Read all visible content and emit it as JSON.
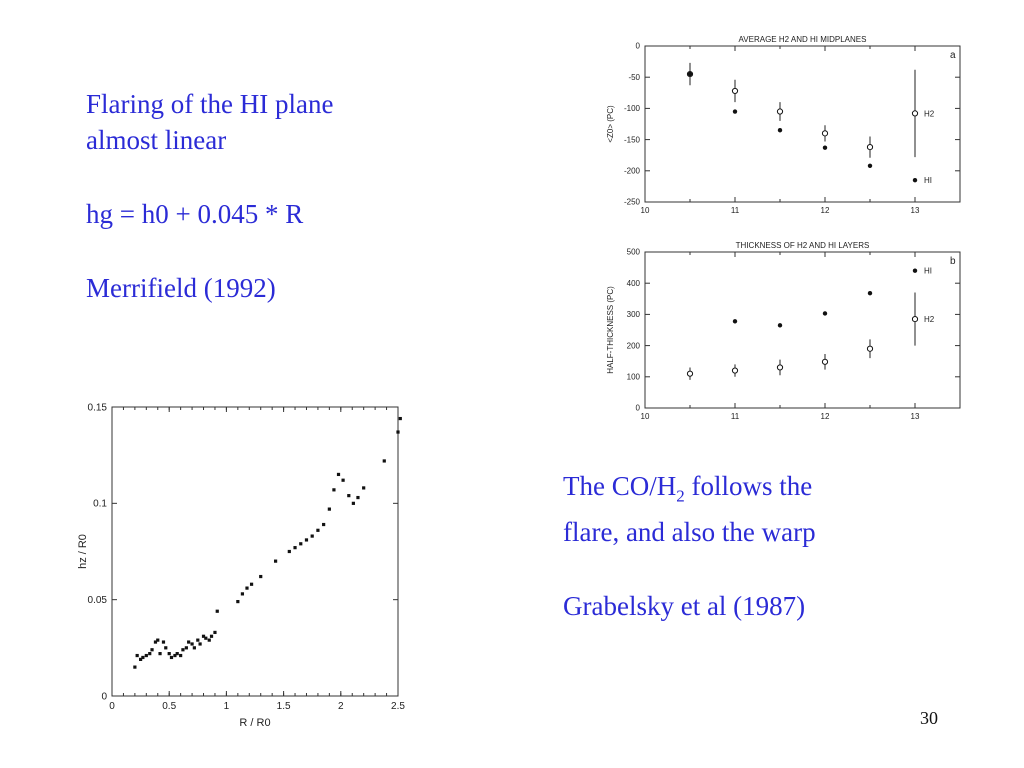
{
  "text_left": {
    "line1": "Flaring of the HI plane",
    "line2": "almost linear",
    "formula": "hg = h0 + 0.045 * R",
    "reference": "Merrifield (1992)"
  },
  "text_right": {
    "line1_prefix": "The CO/H",
    "line1_sub": "2",
    "line1_suffix": " follows the",
    "line2": "flare, and also the warp",
    "reference": "Grabelsky et al (1987)"
  },
  "page_number": "30",
  "chart_data": [
    {
      "type": "scatter",
      "title": "",
      "xlabel": "R / R0",
      "ylabel": "hz / R0",
      "xlim": [
        0,
        2.5
      ],
      "ylim": [
        0,
        0.15
      ],
      "x_ticks": [
        "0",
        "0.5",
        "1",
        "1.5",
        "2",
        "2.5"
      ],
      "y_ticks": [
        "0",
        "0.05",
        "0.1",
        "0.15"
      ],
      "series": [
        {
          "x": [
            0.2,
            0.22,
            0.25,
            0.27,
            0.3,
            0.33,
            0.35,
            0.38,
            0.4,
            0.42,
            0.45,
            0.47,
            0.5,
            0.52,
            0.55,
            0.57,
            0.6,
            0.62,
            0.65,
            0.67,
            0.7,
            0.72,
            0.75,
            0.77,
            0.8,
            0.82,
            0.85,
            0.87,
            0.9,
            0.92,
            1.1,
            1.14,
            1.18,
            1.22,
            1.3,
            1.43,
            1.55,
            1.6,
            1.65,
            1.7,
            1.75,
            1.8,
            1.85,
            1.9,
            1.94,
            1.98,
            2.02,
            2.07,
            2.11,
            2.15,
            2.2,
            2.38,
            2.5,
            2.52
          ],
          "y": [
            0.015,
            0.021,
            0.019,
            0.02,
            0.021,
            0.022,
            0.024,
            0.028,
            0.029,
            0.022,
            0.028,
            0.025,
            0.022,
            0.02,
            0.021,
            0.022,
            0.021,
            0.024,
            0.025,
            0.028,
            0.027,
            0.025,
            0.029,
            0.027,
            0.031,
            0.03,
            0.029,
            0.031,
            0.033,
            0.044,
            0.049,
            0.053,
            0.056,
            0.058,
            0.062,
            0.07,
            0.075,
            0.077,
            0.079,
            0.081,
            0.083,
            0.086,
            0.089,
            0.097,
            0.107,
            0.115,
            0.112,
            0.104,
            0.1,
            0.103,
            0.108,
            0.122,
            0.137,
            0.144
          ]
        }
      ]
    },
    {
      "type": "scatter",
      "title": "AVERAGE H2 AND HI MIDPLANES",
      "panel_label": "a",
      "xlabel": "",
      "ylabel": "<Z0> (PC)",
      "xlim": [
        10,
        13.5
      ],
      "ylim": [
        -250,
        0
      ],
      "x_ticks": [
        "10",
        "11",
        "12",
        "13"
      ],
      "y_ticks": [
        "0",
        "-50",
        "-100",
        "-150",
        "-200",
        "-250"
      ],
      "series": [
        {
          "name": "H2",
          "marker": "open-circle",
          "x": [
            10.5,
            11,
            11.5,
            12,
            12.5,
            13
          ],
          "y": [
            -45,
            -72,
            -105,
            -140,
            -162,
            -108
          ],
          "yerr": [
            18,
            18,
            15,
            13,
            17,
            70
          ]
        },
        {
          "name": "HI",
          "marker": "dot",
          "x": [
            10.5,
            11,
            11.5,
            12,
            12.5
          ],
          "y": [
            -45,
            -105,
            -135,
            -163,
            -192
          ]
        }
      ]
    },
    {
      "type": "scatter",
      "title": "THICKNESS OF H2 AND HI LAYERS",
      "panel_label": "b",
      "xlabel": "",
      "ylabel": "HALF-THICKNESS (PC)",
      "xlim": [
        10,
        13.5
      ],
      "ylim": [
        0,
        500
      ],
      "x_ticks": [
        "10",
        "11",
        "12",
        "13"
      ],
      "y_ticks": [
        "0",
        "100",
        "200",
        "300",
        "400",
        "500"
      ],
      "series": [
        {
          "name": "H2",
          "marker": "open-circle",
          "x": [
            10.5,
            11,
            11.5,
            12,
            12.5,
            13
          ],
          "y": [
            110,
            120,
            130,
            148,
            190,
            285
          ],
          "yerr": [
            20,
            20,
            25,
            25,
            30,
            85
          ]
        },
        {
          "name": "HI",
          "marker": "dot",
          "x": [
            11,
            11.5,
            12,
            12.5,
            13
          ],
          "y": [
            278,
            265,
            303,
            368,
            440
          ]
        }
      ]
    }
  ]
}
